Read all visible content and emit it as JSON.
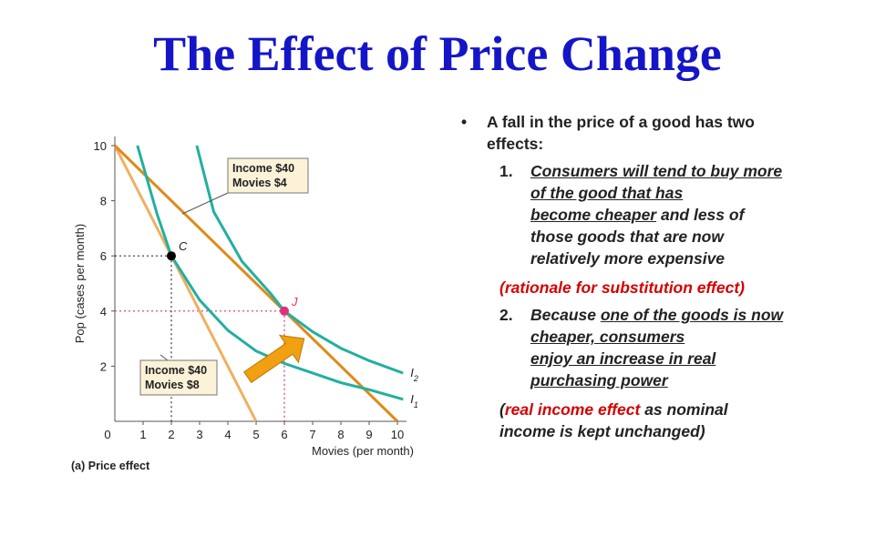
{
  "title": "The Effect of Price Change",
  "chart_data": {
    "type": "line",
    "caption": "(a) Price effect",
    "xlabel": "Movies (per month)",
    "ylabel": "Pop (cases per month)",
    "xlim": [
      0,
      10
    ],
    "ylim": [
      0,
      10
    ],
    "x_ticks": [
      "0",
      "1",
      "2",
      "3",
      "4",
      "5",
      "6",
      "7",
      "8",
      "9",
      "10"
    ],
    "y_ticks": [
      "2",
      "4",
      "6",
      "8",
      "10"
    ],
    "budget_lines": [
      {
        "label": [
          "Income $40",
          "Movies $8"
        ],
        "x": [
          0,
          5
        ],
        "y": [
          10,
          0
        ],
        "color": "#f0b060"
      },
      {
        "label": [
          "Income $40",
          "Movies $4"
        ],
        "x": [
          0,
          10
        ],
        "y": [
          10,
          0
        ],
        "color": "#e08a1a"
      }
    ],
    "indifference_curves": [
      {
        "name": "I",
        "subscript": "1",
        "x": [
          0.8,
          1.5,
          2,
          3,
          4,
          5,
          6,
          7,
          8,
          9,
          10.2
        ],
        "y": [
          10,
          7.5,
          6,
          4.4,
          3.3,
          2.55,
          2.1,
          1.75,
          1.4,
          1.15,
          0.8
        ],
        "color": "#20b0a0"
      },
      {
        "name": "I",
        "subscript": "2",
        "x": [
          2.9,
          3.5,
          4.5,
          5.5,
          6,
          7,
          8,
          9,
          10.2
        ],
        "y": [
          10,
          7.6,
          5.8,
          4.65,
          4,
          3.25,
          2.65,
          2.2,
          1.75
        ],
        "color": "#20b0a0"
      }
    ],
    "points": [
      {
        "label": "C",
        "x": 2,
        "y": 6,
        "color": "#000000",
        "guide": "dotted-black"
      },
      {
        "label": "J",
        "x": 6,
        "y": 4,
        "color": "#e0307a",
        "guide": "dotted-pink"
      }
    ],
    "arrow": {
      "from": [
        4.7,
        1.6
      ],
      "to": [
        6.7,
        3.0
      ],
      "color": "#f0a010"
    }
  },
  "text": {
    "bullet_mark": "•",
    "bullet": [
      "A fall in the price of a good has two",
      "effects:"
    ],
    "item1_num": "1.",
    "item1": {
      "l1": "Consumers will tend to buy more",
      "l2": "of the good that has",
      "l3a": "become cheaper",
      "l3b": " and less of",
      "l4": "those goods that are now",
      "l5": "relatively more expensive"
    },
    "item1_note": "(rationale for substitution effect)",
    "item2_num": "2.",
    "item2": {
      "l1a": "Because ",
      "l1b": "one of the goods is now",
      "l2": "cheaper, consumers",
      "l3": "enjoy an increase in real",
      "l4": "purchasing power"
    },
    "item2_note": {
      "open": "(",
      "red": "real income effect",
      "rest1": " as nominal",
      "rest2": "income is kept unchanged)"
    }
  }
}
